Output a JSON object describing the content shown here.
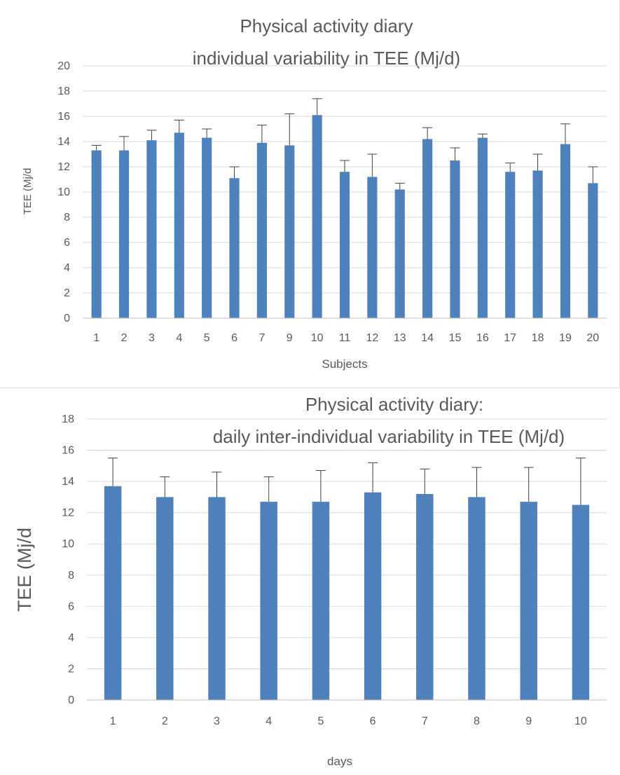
{
  "chart_data": [
    {
      "type": "bar",
      "title": [
        "Physical activity diary",
        "individual variability in TEE (Mj/d)"
      ],
      "xlabel": "Subjects",
      "ylabel": "TEE (Mj/d",
      "ylim": [
        0,
        20
      ],
      "ytick_step": 2,
      "grid": true,
      "color": "#4f81bd",
      "categories": [
        "1",
        "2",
        "3",
        "4",
        "5",
        "6",
        "7",
        "9",
        "10",
        "11",
        "12",
        "13",
        "14",
        "15",
        "16",
        "17",
        "18",
        "19",
        "20"
      ],
      "values": [
        13.3,
        13.3,
        14.1,
        14.7,
        14.3,
        11.1,
        13.9,
        13.7,
        16.1,
        11.6,
        11.2,
        10.2,
        14.2,
        12.5,
        14.3,
        11.6,
        11.7,
        13.8,
        10.7
      ],
      "error_upper": [
        13.7,
        14.4,
        14.9,
        15.7,
        15.0,
        12.0,
        15.3,
        16.2,
        17.4,
        12.5,
        13.0,
        10.7,
        15.1,
        13.5,
        14.6,
        12.3,
        13.0,
        15.4,
        12.0
      ]
    },
    {
      "type": "bar",
      "title": [
        "Physical activity diary:",
        "daily inter-individual variability in TEE (Mj/d)"
      ],
      "xlabel": "days",
      "ylabel": "TEE (Mj/d",
      "ylim": [
        0,
        18
      ],
      "ytick_step": 2,
      "grid": true,
      "color": "#4f81bd",
      "categories": [
        "1",
        "2",
        "3",
        "4",
        "5",
        "6",
        "7",
        "8",
        "9",
        "10"
      ],
      "values": [
        13.7,
        13.0,
        13.0,
        12.7,
        12.7,
        13.3,
        13.2,
        13.0,
        12.7,
        12.5
      ],
      "error_upper": [
        15.5,
        14.3,
        14.6,
        14.3,
        14.7,
        15.2,
        14.8,
        14.9,
        14.9,
        15.5
      ]
    }
  ]
}
